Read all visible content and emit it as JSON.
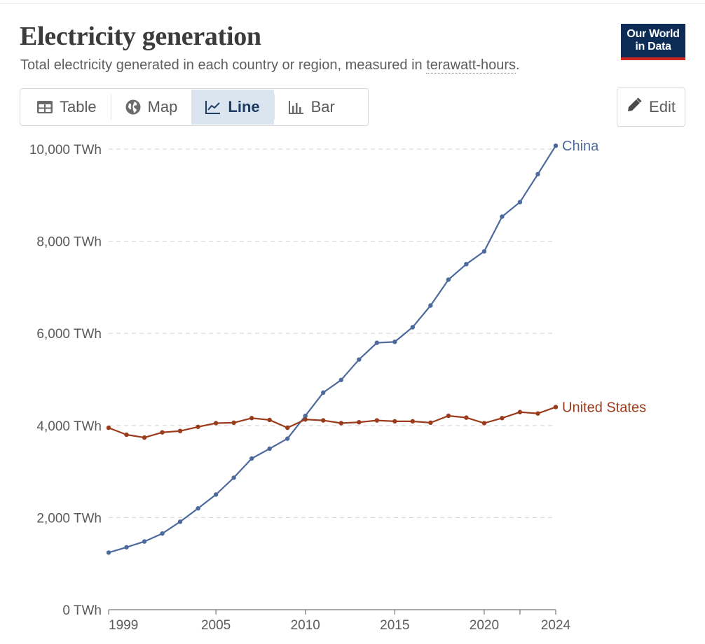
{
  "header": {
    "title": "Electricity generation",
    "subtitle_prefix": "Total electricity generated in each country or region, measured in ",
    "subtitle_term": "terawatt-hours",
    "subtitle_suffix": ".",
    "logo_line1": "Our World",
    "logo_line2": "in Data"
  },
  "tabs": [
    {
      "label": "Table",
      "icon": "table-icon",
      "active": false
    },
    {
      "label": "Map",
      "icon": "globe-icon",
      "active": false
    },
    {
      "label": "Line",
      "icon": "line-chart-icon",
      "active": true
    },
    {
      "label": "Bar",
      "icon": "bar-chart-icon",
      "active": false
    }
  ],
  "edit_label": "Edit",
  "colors": {
    "china": "#4c6a9c",
    "united_states": "#9a3b1b",
    "grid": "#d9d9d9",
    "logo_bg": "#0d2c55",
    "logo_accent": "#ce261e"
  },
  "chart_data": {
    "type": "line",
    "title": "Electricity generation",
    "xlabel": "",
    "ylabel": "",
    "unit": "TWh",
    "xlim": [
      1999,
      2024
    ],
    "ylim": [
      0,
      10000
    ],
    "yticks": [
      0,
      2000,
      4000,
      6000,
      8000,
      10000
    ],
    "ytick_labels": [
      "0 TWh",
      "2,000 TWh",
      "4,000 TWh",
      "6,000 TWh",
      "8,000 TWh",
      "10,000 TWh"
    ],
    "xtick_labels": [
      "1999",
      "2005",
      "2010",
      "2015",
      "2020",
      "2024"
    ],
    "x": [
      1999,
      2000,
      2001,
      2002,
      2003,
      2004,
      2005,
      2006,
      2007,
      2008,
      2009,
      2010,
      2011,
      2012,
      2013,
      2014,
      2015,
      2016,
      2017,
      2018,
      2019,
      2020,
      2021,
      2022,
      2023,
      2024
    ],
    "series": [
      {
        "name": "China",
        "color": "#4c6a9c",
        "values": [
          1240,
          1356,
          1480,
          1654,
          1910,
          2200,
          2500,
          2866,
          3282,
          3496,
          3714,
          4208,
          4713,
          4988,
          5431,
          5795,
          5815,
          6133,
          6604,
          7166,
          7503,
          7779,
          8534,
          8849,
          9456,
          10073
        ]
      },
      {
        "name": "United States",
        "color": "#9a3b1b",
        "values": [
          3950,
          3800,
          3737,
          3850,
          3880,
          3970,
          4050,
          4060,
          4160,
          4120,
          3950,
          4130,
          4110,
          4050,
          4070,
          4110,
          4090,
          4090,
          4060,
          4210,
          4170,
          4050,
          4160,
          4290,
          4260,
          4400
        ]
      }
    ]
  }
}
